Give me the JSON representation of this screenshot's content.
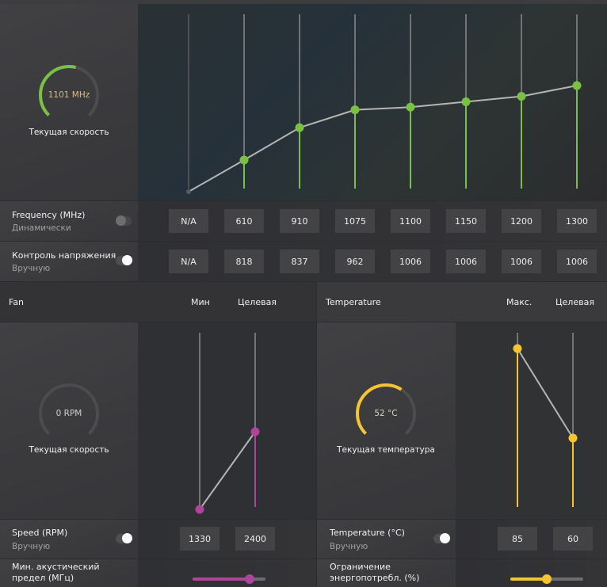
{
  "gpu": {
    "gauge_value": "1101 MHz",
    "gauge_label": "Текущая скорость",
    "gauge_fraction": 0.55,
    "frequency": {
      "label": "Frequency (MHz)",
      "mode": "Динамически",
      "enabled": false,
      "states": [
        "N/A",
        "610",
        "910",
        "1075",
        "1100",
        "1150",
        "1200",
        "1300"
      ]
    },
    "voltage": {
      "label": "Контроль напряжения ...",
      "mode": "Вручную",
      "enabled": true,
      "states": [
        "N/A",
        "818",
        "837",
        "962",
        "1006",
        "1006",
        "1006",
        "1006"
      ]
    },
    "accent": "#7ac143"
  },
  "fan": {
    "title": "Fan",
    "col_min": "Мин",
    "col_target": "Целевая",
    "gauge_value": "0 RPM",
    "gauge_label": "Текущая скорость",
    "gauge_fraction": 0,
    "speed": {
      "label": "Speed (RPM)",
      "mode": "Вручную",
      "enabled": true,
      "min": "1330",
      "target": "2400"
    },
    "acoustic": {
      "label": "Мин. акустический предел (МГц)",
      "slider_fraction": 0.78
    },
    "accent": "#b0449a"
  },
  "temperature": {
    "title": "Temperature",
    "col_max": "Макс.",
    "col_target": "Целевая",
    "gauge_value": "52 °C",
    "gauge_label": "Текущая температура",
    "gauge_fraction": 0.62,
    "temp": {
      "label": "Temperature (°C)",
      "mode": "Вручную",
      "enabled": true,
      "max": "85",
      "target": "60"
    },
    "power": {
      "label": "Ограничение энергопотребл. (%)",
      "slider_fraction": 0.5
    },
    "accent": "#f5c431"
  }
}
